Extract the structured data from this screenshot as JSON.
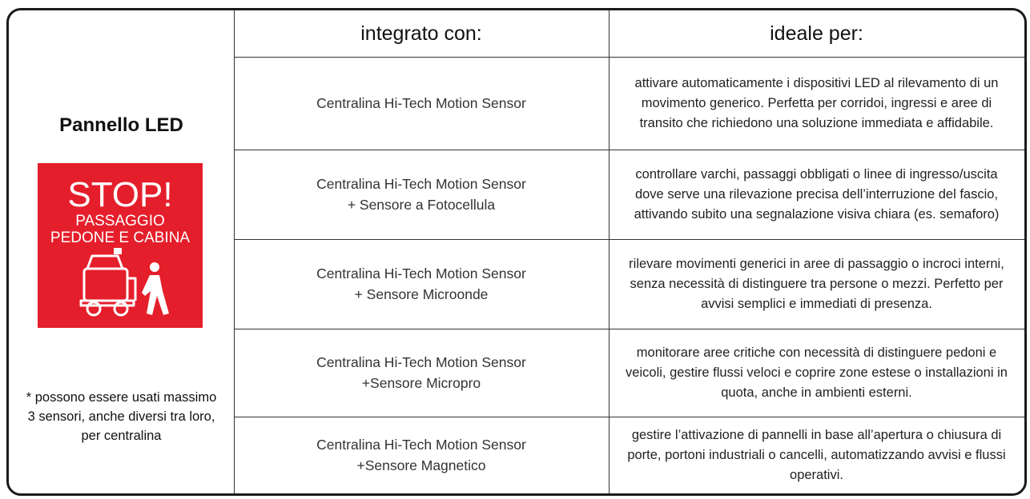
{
  "side": {
    "title": "Pannello LED",
    "sign": {
      "headline": "STOP!",
      "lines": [
        "PASSAGGIO",
        "PEDONE E CABINA"
      ]
    },
    "note": "* possono essere usati massimo 3 sensori, anche diversi tra loro, per centralina"
  },
  "table": {
    "header": [
      "integrato con:",
      "ideale per:"
    ],
    "rows": [
      [
        [
          "Centralina Hi-Tech Motion Sensor"
        ],
        "attivare automaticamente i dispositivi LED al rilevamento di un movimento generico. Perfetta per corridoi, ingressi e aree di transito che richiedono una soluzione immediata e affidabile."
      ],
      [
        [
          "Centralina Hi-Tech Motion Sensor",
          "+ Sensore a Fotocellula"
        ],
        "controllare varchi, passaggi obbligati o linee di ingresso/uscita dove serve una rilevazione precisa dell’interruzione del fascio, attivando subito una segnalazione visiva chiara (es. semaforo)"
      ],
      [
        [
          "Centralina Hi-Tech Motion Sensor",
          "+ Sensore Microonde"
        ],
        "rilevare movimenti generici in aree di passaggio o incroci interni, senza necessità di distinguere tra persone o mezzi. Perfetto per avvisi semplici e immediati di presenza."
      ],
      [
        [
          "Centralina Hi-Tech Motion Sensor",
          "+Sensore Micropro"
        ],
        "monitorare aree critiche con necessità di distinguere pedoni e veicoli, gestire flussi veloci e coprire zone estese o installazioni in quota, anche in ambienti esterni."
      ],
      [
        [
          "Centralina Hi-Tech Motion Sensor",
          "+Sensore Magnetico"
        ],
        "gestire l’attivazione di pannelli in base all’apertura o chiusura di porte, portoni industriali o cancelli, automatizzando avvisi e flussi operativi."
      ]
    ]
  }
}
